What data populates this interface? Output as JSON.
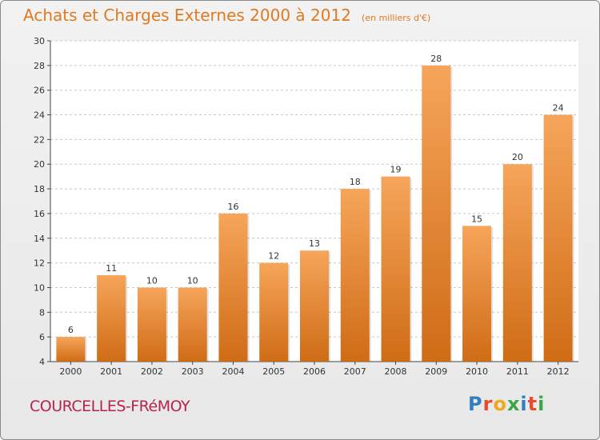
{
  "title": "Achats et Charges Externes 2000 à 2012",
  "unit": "(en milliers d'€)",
  "commune": "COURCELLES-FRéMOY",
  "logo": {
    "letters": [
      "P",
      "r",
      "o",
      "x",
      "i",
      "t",
      "i"
    ],
    "colors": [
      "#2f7fc1",
      "#e84a2a",
      "#f0a81c",
      "#3aa845",
      "#2f7fc1",
      "#e84a2a",
      "#3aa845"
    ]
  },
  "colors": {
    "bar_top": "#f6a55a",
    "bar_bottom": "#cf6c16",
    "grid": "#c8c8c8",
    "axis": "#444444"
  },
  "chart_data": {
    "type": "bar",
    "title": "Achats et Charges Externes 2000 à 2012",
    "xlabel": "",
    "ylabel": "(en milliers d'€)",
    "categories": [
      "2000",
      "2001",
      "2002",
      "2003",
      "2004",
      "2005",
      "2006",
      "2007",
      "2008",
      "2009",
      "2010",
      "2011",
      "2012"
    ],
    "values": [
      6,
      11,
      10,
      10,
      16,
      12,
      13,
      18,
      19,
      28,
      15,
      20,
      24
    ],
    "ylim": [
      4,
      30
    ],
    "yticks": [
      4,
      6,
      8,
      10,
      12,
      14,
      16,
      18,
      20,
      22,
      24,
      26,
      28,
      30
    ],
    "grid": true
  }
}
